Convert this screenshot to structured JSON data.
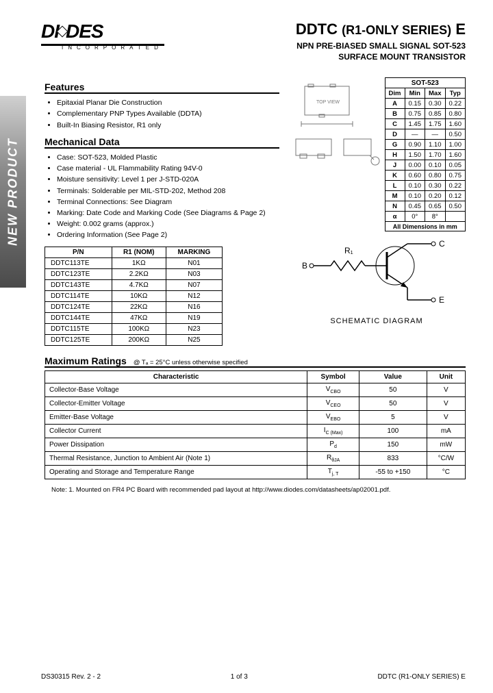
{
  "logo": {
    "main": "DIODES",
    "sub": "INCORPORATED"
  },
  "title": {
    "pre": "DDTC",
    "mid": "(R1-ONLY SERIES)",
    "post": "E",
    "subtitle_l1": "NPN PRE-BIASED SMALL SIGNAL SOT-523",
    "subtitle_l2": "SURFACE MOUNT TRANSISTOR"
  },
  "side_tab": "NEW PRODUCT",
  "features": {
    "title": "Features",
    "items": [
      "Epitaxial Planar Die Construction",
      "Complementary PNP Types Available (DDTA)",
      "Built-In Biasing Resistor, R1 only"
    ]
  },
  "mechanical": {
    "title": "Mechanical Data",
    "items": [
      "Case: SOT-523, Molded Plastic",
      "Case material - UL Flammability Rating 94V-0",
      "Moisture sensitivity: Level 1 per J-STD-020A",
      "Terminals: Solderable per MIL-STD-202, Method 208",
      "Terminal Connections: See Diagram",
      "Marking: Date Code and Marking Code (See Diagrams & Page 2)",
      "Weight: 0.002 grams (approx.)",
      "Ordering Information (See Page 2)"
    ]
  },
  "part_table": {
    "headers": [
      "P/N",
      "R1 (NOM)",
      "MARKING"
    ],
    "rows": [
      [
        "DDTC113TE",
        "1KΩ",
        "N01"
      ],
      [
        "DDTC123TE",
        "2.2KΩ",
        "N03"
      ],
      [
        "DDTC143TE",
        "4.7KΩ",
        "N07"
      ],
      [
        "DDTC114TE",
        "10KΩ",
        "N12"
      ],
      [
        "DDTC124TE",
        "22KΩ",
        "N16"
      ],
      [
        "DDTC144TE",
        "47KΩ",
        "N19"
      ],
      [
        "DDTC115TE",
        "100KΩ",
        "N23"
      ],
      [
        "DDTC125TE",
        "200KΩ",
        "N25"
      ]
    ]
  },
  "dim_table": {
    "title": "SOT-523",
    "headers": [
      "Dim",
      "Min",
      "Max",
      "Typ"
    ],
    "rows": [
      [
        "A",
        "0.15",
        "0.30",
        "0.22"
      ],
      [
        "B",
        "0.75",
        "0.85",
        "0.80"
      ],
      [
        "C",
        "1.45",
        "1.75",
        "1.60"
      ],
      [
        "D",
        "—",
        "—",
        "0.50"
      ],
      [
        "G",
        "0.90",
        "1.10",
        "1.00"
      ],
      [
        "H",
        "1.50",
        "1.70",
        "1.60"
      ],
      [
        "J",
        "0.00",
        "0.10",
        "0.05"
      ],
      [
        "K",
        "0.60",
        "0.80",
        "0.75"
      ],
      [
        "L",
        "0.10",
        "0.30",
        "0.22"
      ],
      [
        "M",
        "0.10",
        "0.20",
        "0.12"
      ],
      [
        "N",
        "0.45",
        "0.65",
        "0.50"
      ],
      [
        "α",
        "0°",
        "8°",
        ""
      ]
    ],
    "footer": "All Dimensions in mm"
  },
  "schematic": {
    "R": "R₁",
    "B": "B",
    "C": "C",
    "E": "E",
    "label": "SCHEMATIC DIAGRAM"
  },
  "ratings": {
    "title": "Maximum Ratings",
    "condition": "@ Tₐ = 25°C unless otherwise specified",
    "headers": [
      "Characteristic",
      "Symbol",
      "Value",
      "Unit"
    ],
    "rows": [
      [
        "Collector-Base Voltage",
        "V_CBO",
        "50",
        "V"
      ],
      [
        "Collector-Emitter Voltage",
        "V_CEO",
        "50",
        "V"
      ],
      [
        "Emitter-Base Voltage",
        "V_EBO",
        "5",
        "V"
      ],
      [
        "Collector Current",
        "I_C (Max)",
        "100",
        "mA"
      ],
      [
        "Power Dissipation",
        "P_d",
        "150",
        "mW"
      ],
      [
        "Thermal Resistance, Junction to Ambient Air (Note 1)",
        "R_θJA",
        "833",
        "°C/W"
      ],
      [
        "Operating and Storage and Temperature Range",
        "T_j, T_stg",
        "-55 to +150",
        "°C"
      ]
    ]
  },
  "note": "Note:    1. Mounted on FR4 PC Board with recommended pad layout at http://www.diodes.com/datasheets/ap02001.pdf.",
  "footer": {
    "left": "DS30315 Rev. 2 - 2",
    "center": "1 of 3",
    "right": "DDTC (R1-ONLY SERIES) E"
  },
  "colors": {
    "text": "#000000",
    "bg": "#ffffff",
    "tab_grad_top": "#4a4a4a",
    "tab_grad_bot": "#d0d0d0",
    "border": "#000000"
  }
}
